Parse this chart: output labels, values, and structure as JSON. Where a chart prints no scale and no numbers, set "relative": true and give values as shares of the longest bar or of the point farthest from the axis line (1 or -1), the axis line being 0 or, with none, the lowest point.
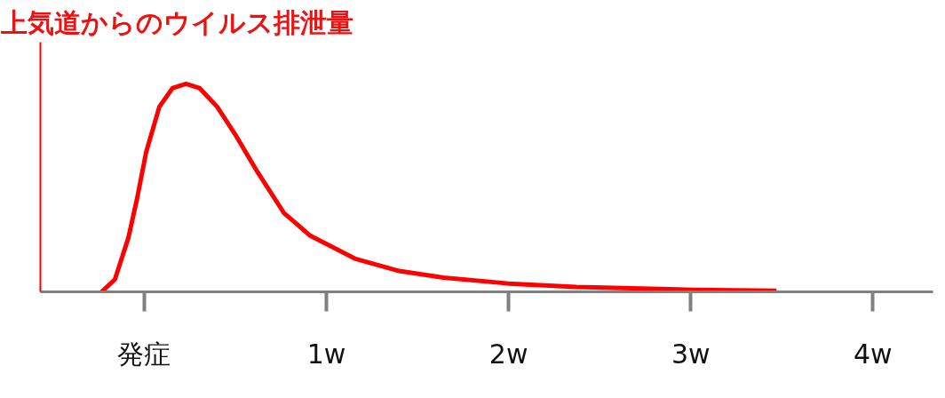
{
  "chart_data": {
    "type": "line",
    "title": "上気道からのウイルス排泄量",
    "relative": true,
    "xlim": [
      -0.57,
      4.33
    ],
    "xticks": [
      {
        "value": 0,
        "label": "発症"
      },
      {
        "value": 1,
        "label": "1w"
      },
      {
        "value": 2,
        "label": "2w"
      },
      {
        "value": 3,
        "label": "3w"
      },
      {
        "value": 4,
        "label": "4w"
      }
    ],
    "grid": false,
    "marker": "none",
    "line_style": "solid",
    "series": [
      {
        "color": "#ff0000",
        "x": [
          -0.234,
          -0.161,
          -0.087,
          -0.039,
          0.01,
          0.083,
          0.156,
          0.229,
          0.303,
          0.4,
          0.497,
          0.619,
          0.766,
          0.911,
          1.156,
          1.4,
          1.643,
          2.0,
          2.371,
          3.014,
          3.471
        ],
        "values": [
          0,
          0.06,
          0.26,
          0.45,
          0.67,
          0.89,
          0.98,
          1.0,
          0.98,
          0.89,
          0.76,
          0.58,
          0.38,
          0.27,
          0.16,
          0.1,
          0.068,
          0.04,
          0.024,
          0.01,
          0.005
        ]
      }
    ]
  }
}
